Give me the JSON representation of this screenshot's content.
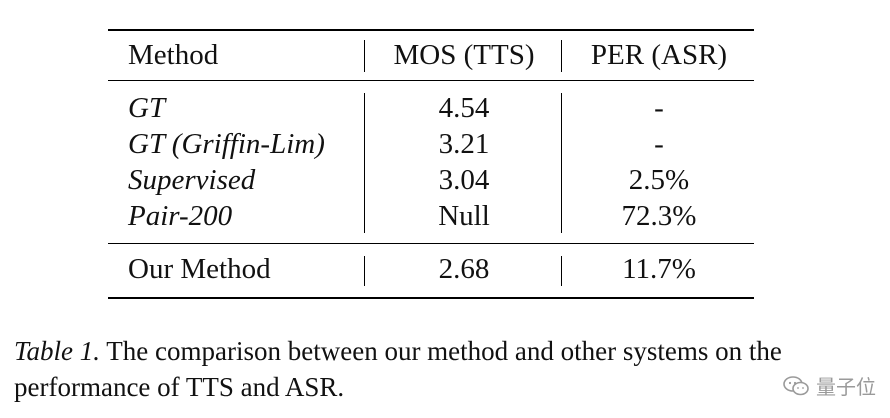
{
  "table": {
    "headers": {
      "method": "Method",
      "mos": "MOS (TTS)",
      "per": "PER (ASR)"
    },
    "rows": [
      {
        "method": "GT",
        "mos": "4.54",
        "per": "-"
      },
      {
        "method": "GT (Griffin-Lim)",
        "mos": "3.21",
        "per": "-"
      },
      {
        "method": "Supervised",
        "mos": "3.04",
        "per": "2.5%"
      },
      {
        "method": "Pair-200",
        "mos": "Null",
        "per": "72.3%"
      }
    ],
    "final_row": {
      "method": "Our Method",
      "mos": "2.68",
      "per": "11.7%"
    }
  },
  "caption": {
    "label": "Table 1.",
    "text": "The comparison between our method and other systems on the performance of TTS and ASR."
  },
  "watermark": {
    "text": "量子位",
    "icon": "wechat-icon"
  }
}
